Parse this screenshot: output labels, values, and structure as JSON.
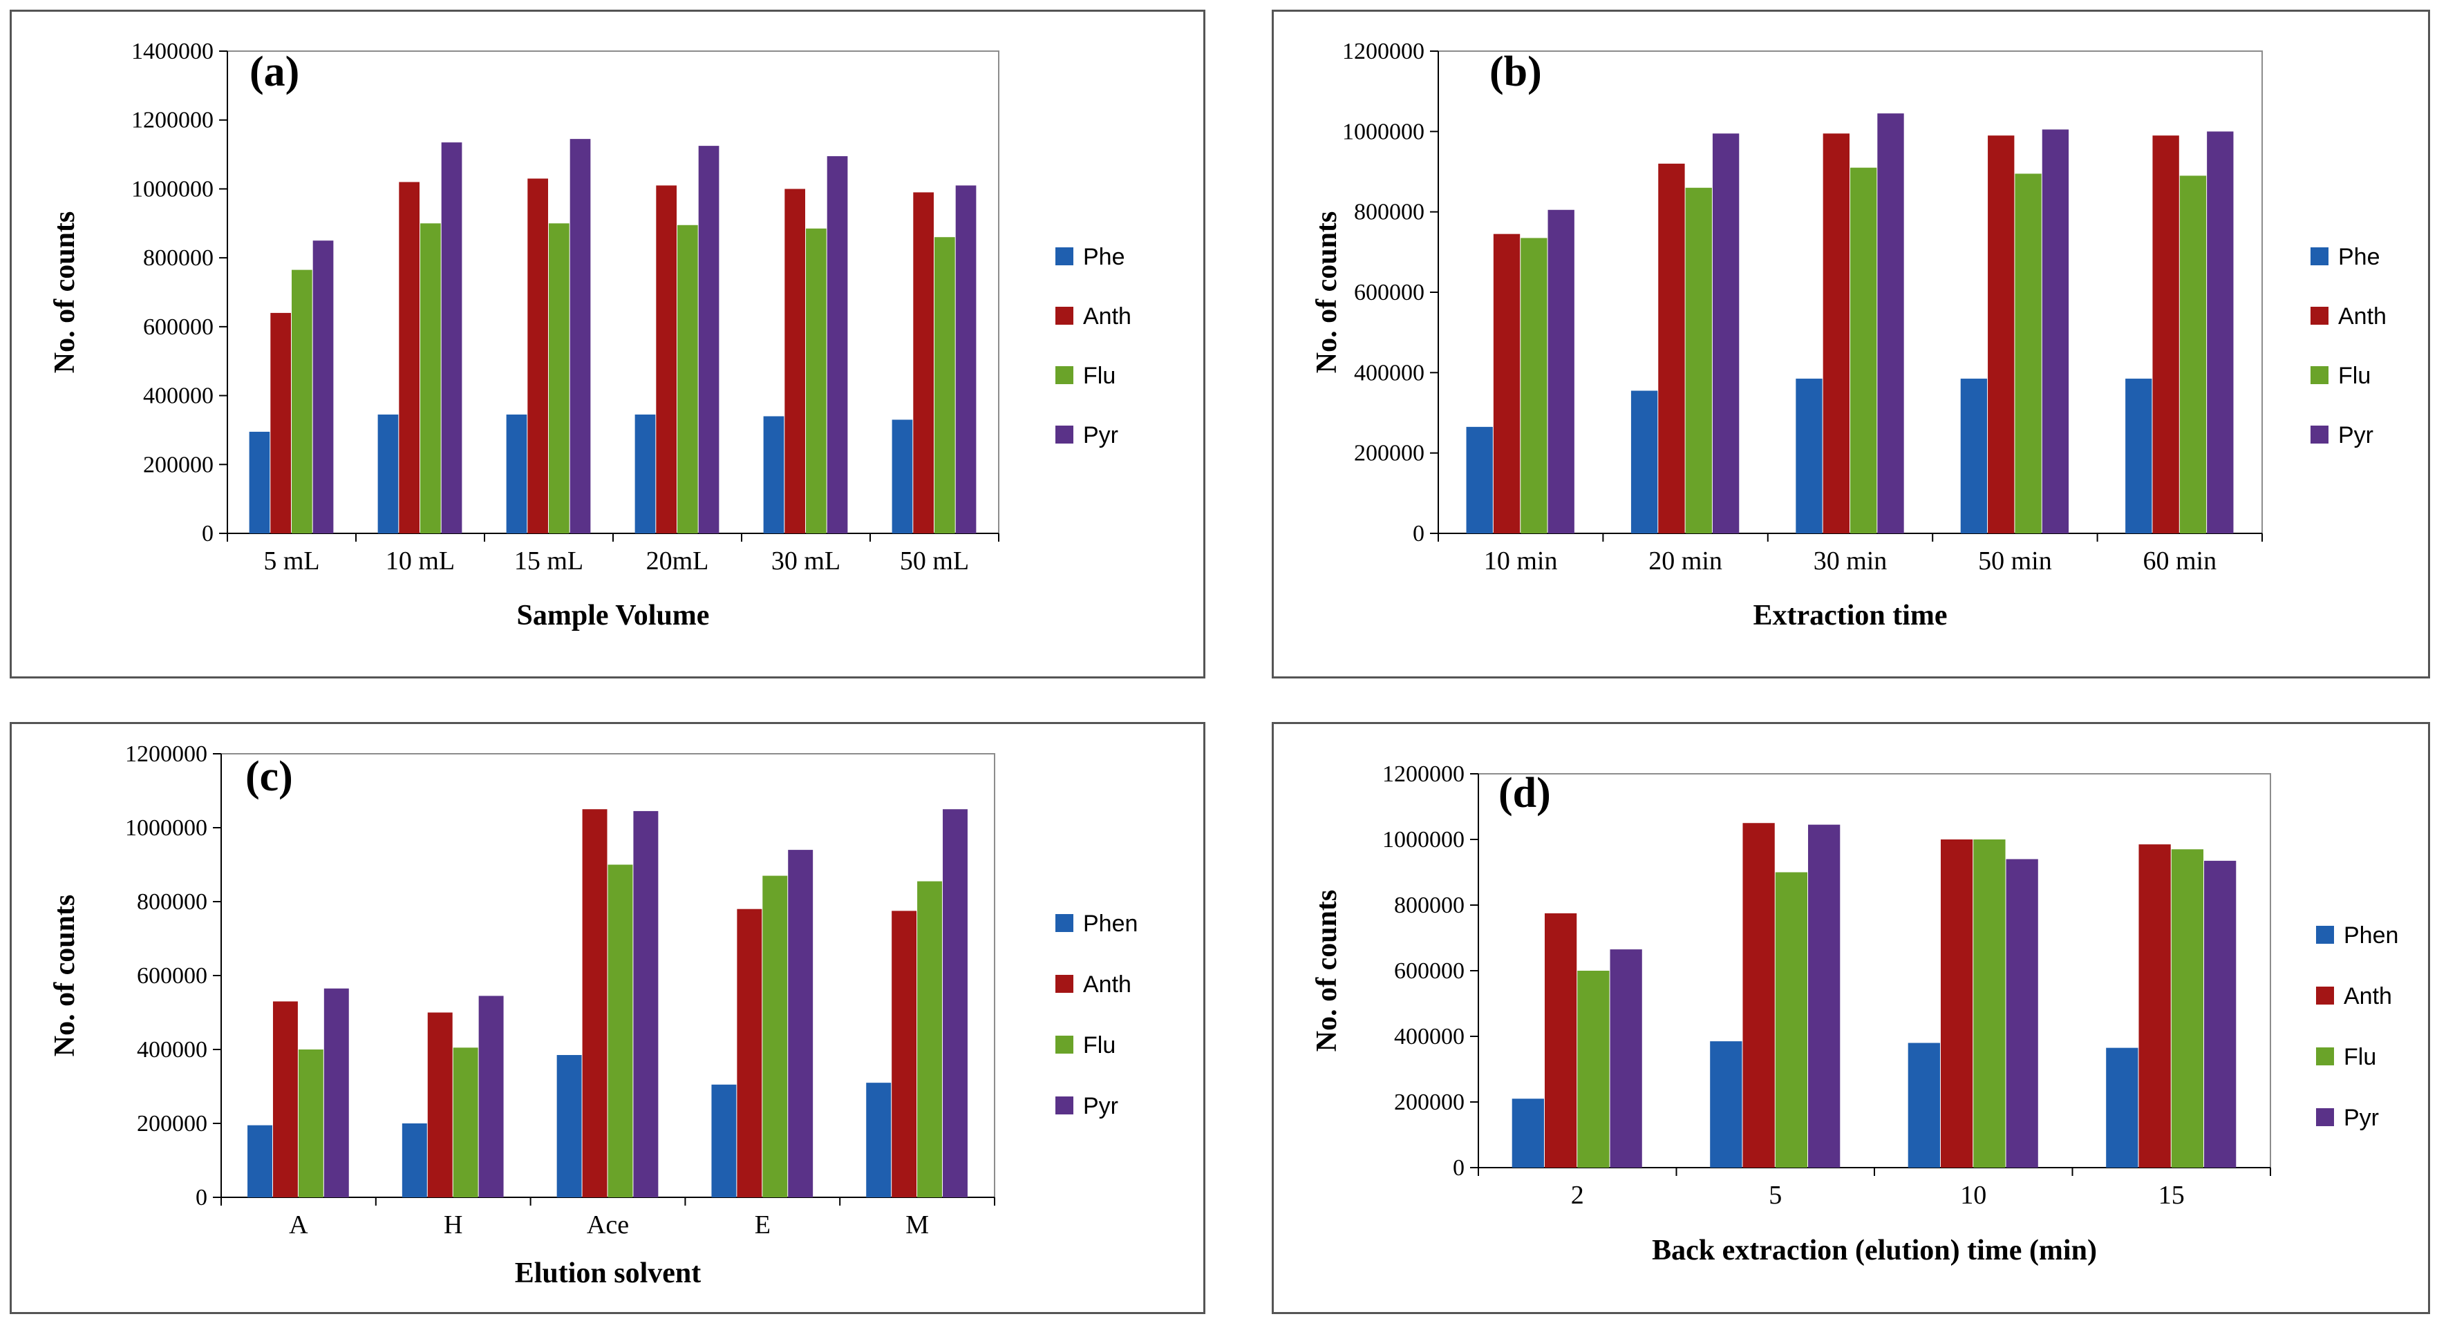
{
  "colors": {
    "s0": "#1F5FAF",
    "s1": "#A31515",
    "s2": "#6AA329",
    "s3": "#5A3288"
  },
  "chart_data": [
    {
      "type": "bar",
      "tag": "(a)",
      "title": "",
      "xlabel": "Sample Volume",
      "ylabel": "No. of counts",
      "ylim": [
        0,
        1400000
      ],
      "yticks": [
        "0",
        "200000",
        "400000",
        "600000",
        "800000",
        "1000000",
        "1200000",
        "1400000"
      ],
      "categories": [
        "5 mL",
        "10 mL",
        "15 mL",
        "20mL",
        "30 mL",
        "50 mL"
      ],
      "series": [
        {
          "name": "Phe",
          "values": [
            295000,
            345000,
            345000,
            345000,
            340000,
            330000
          ]
        },
        {
          "name": "Anth",
          "values": [
            640000,
            1020000,
            1030000,
            1010000,
            1000000,
            990000
          ]
        },
        {
          "name": "Flu",
          "values": [
            765000,
            900000,
            900000,
            895000,
            885000,
            860000
          ]
        },
        {
          "name": "Pyr",
          "values": [
            850000,
            1135000,
            1145000,
            1125000,
            1095000,
            1010000
          ]
        }
      ]
    },
    {
      "type": "bar",
      "tag": "(b)",
      "title": "",
      "xlabel": "Extraction time",
      "ylabel": "No. of counts",
      "ylim": [
        0,
        1200000
      ],
      "yticks": [
        "0",
        "200000",
        "400000",
        "600000",
        "800000",
        "1000000",
        "1200000"
      ],
      "categories": [
        "10 min",
        "20 min",
        "30 min",
        "50 min",
        "60 min"
      ],
      "series": [
        {
          "name": "Phe",
          "values": [
            265000,
            355000,
            385000,
            385000,
            385000
          ]
        },
        {
          "name": "Anth",
          "values": [
            745000,
            920000,
            995000,
            990000,
            990000
          ]
        },
        {
          "name": "Flu",
          "values": [
            735000,
            860000,
            910000,
            895000,
            890000
          ]
        },
        {
          "name": "Pyr",
          "values": [
            805000,
            995000,
            1045000,
            1005000,
            1000000
          ]
        }
      ]
    },
    {
      "type": "bar",
      "tag": "(c)",
      "title": "",
      "xlabel": "Elution solvent",
      "ylabel": "No. of counts",
      "ylim": [
        0,
        1200000
      ],
      "yticks": [
        "0",
        "200000",
        "400000",
        "600000",
        "800000",
        "1000000",
        "1200000"
      ],
      "categories": [
        "A",
        "H",
        "Ace",
        "E",
        "M"
      ],
      "series": [
        {
          "name": "Phen",
          "values": [
            195000,
            200000,
            385000,
            305000,
            310000
          ]
        },
        {
          "name": "Anth",
          "values": [
            530000,
            500000,
            1050000,
            780000,
            775000
          ]
        },
        {
          "name": "Flu",
          "values": [
            400000,
            405000,
            900000,
            870000,
            855000
          ]
        },
        {
          "name": "Pyr",
          "values": [
            565000,
            545000,
            1045000,
            940000,
            1050000
          ]
        }
      ]
    },
    {
      "type": "bar",
      "tag": "(d)",
      "title": "",
      "xlabel": "Back extraction (elution) time (min)",
      "ylabel": "No. of counts",
      "ylim": [
        0,
        1200000
      ],
      "yticks": [
        "0",
        "200000",
        "400000",
        "600000",
        "800000",
        "1000000",
        "1200000"
      ],
      "categories": [
        "2",
        "5",
        "10",
        "15"
      ],
      "series": [
        {
          "name": "Phen",
          "values": [
            210000,
            385000,
            380000,
            365000
          ]
        },
        {
          "name": "Anth",
          "values": [
            775000,
            1050000,
            1000000,
            985000
          ]
        },
        {
          "name": "Flu",
          "values": [
            600000,
            900000,
            1000000,
            970000
          ]
        },
        {
          "name": "Pyr",
          "values": [
            665000,
            1045000,
            940000,
            935000
          ]
        }
      ]
    }
  ]
}
